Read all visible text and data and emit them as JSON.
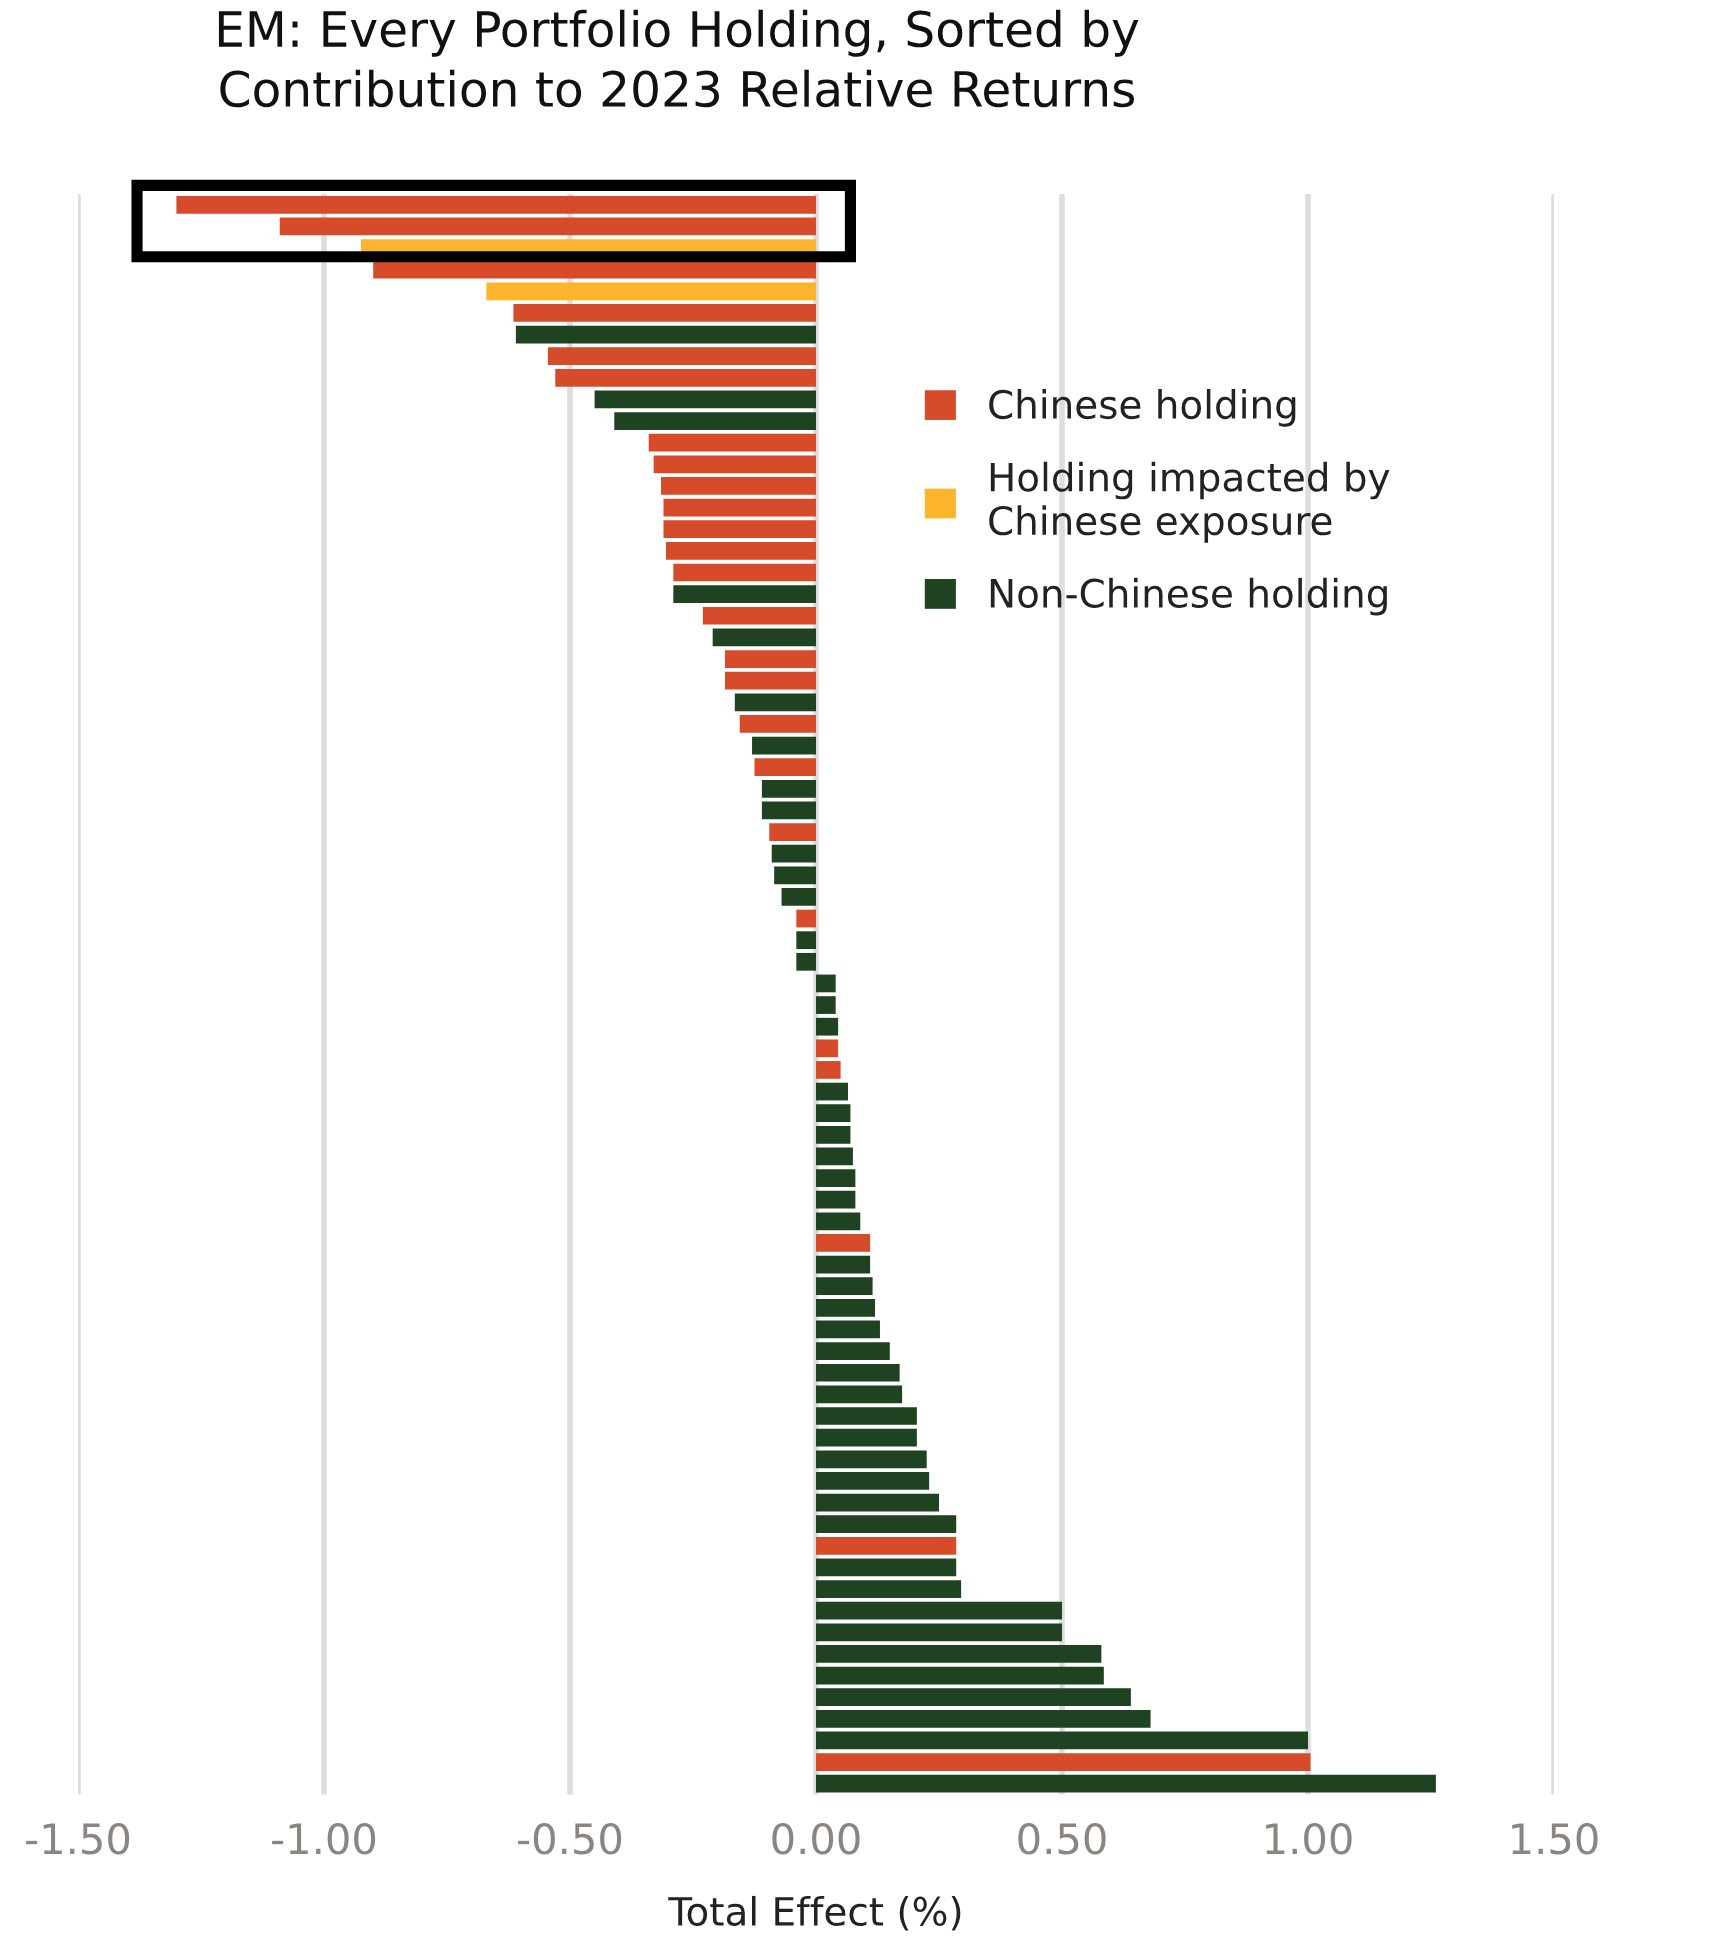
{
  "chart_data": {
    "type": "bar",
    "orientation": "horizontal",
    "title": "EM: Every Portfolio Holding, Sorted by\nContribution to 2023 Relative Returns",
    "xlabel": "Total Effect (%)",
    "categories": [
      null,
      null,
      null,
      null,
      null,
      null,
      null,
      null,
      null,
      null,
      null,
      null,
      null,
      null,
      null,
      null,
      null,
      null,
      null,
      null,
      null,
      null,
      null,
      null,
      null,
      null,
      null,
      null,
      null,
      null,
      null,
      null,
      null,
      null,
      null,
      null,
      null,
      null,
      null,
      null,
      null,
      null,
      null,
      null,
      null,
      null,
      null,
      null,
      null,
      null,
      null,
      null,
      null,
      null,
      null,
      null,
      null,
      null,
      null,
      null,
      null,
      null,
      null,
      null,
      null,
      null,
      null,
      null,
      null,
      null,
      null,
      null,
      null,
      null
    ],
    "series": [
      {
        "name": "Chinese holding",
        "color": "#d64b29",
        "values": [
          -1.3,
          -1.09,
          null,
          -0.9,
          null,
          -0.615,
          null,
          -0.545,
          -0.53,
          null,
          null,
          -0.34,
          -0.33,
          -0.315,
          -0.31,
          -0.31,
          -0.305,
          -0.29,
          null,
          -0.23,
          null,
          -0.185,
          -0.185,
          null,
          -0.155,
          null,
          -0.125,
          null,
          null,
          -0.095,
          null,
          null,
          null,
          -0.04,
          null,
          null,
          null,
          null,
          null,
          0.045,
          0.05,
          null,
          null,
          null,
          null,
          null,
          null,
          null,
          0.11,
          null,
          null,
          null,
          null,
          null,
          null,
          null,
          null,
          null,
          null,
          null,
          null,
          null,
          0.285,
          null,
          null,
          null,
          null,
          null,
          null,
          null,
          null,
          null,
          1.005,
          null
        ]
      },
      {
        "name": "Holding impacted by\nChinese exposure",
        "color": "#fdb42d",
        "values": [
          null,
          null,
          -0.925,
          null,
          -0.67,
          null,
          null,
          null,
          null,
          null,
          null,
          null,
          null,
          null,
          null,
          null,
          null,
          null,
          null,
          null,
          null,
          null,
          null,
          null,
          null,
          null,
          null,
          null,
          null,
          null,
          null,
          null,
          null,
          null,
          null,
          null,
          null,
          null,
          null,
          null,
          null,
          null,
          null,
          null,
          null,
          null,
          null,
          null,
          null,
          null,
          null,
          null,
          null,
          null,
          null,
          null,
          null,
          null,
          null,
          null,
          null,
          null,
          null,
          null,
          null,
          null,
          null,
          null,
          null,
          null,
          null,
          null,
          null,
          null
        ]
      },
      {
        "name": "Non-Chinese holding",
        "color": "#1f4220",
        "values": [
          null,
          null,
          null,
          null,
          null,
          null,
          -0.61,
          null,
          null,
          -0.45,
          -0.41,
          null,
          null,
          null,
          null,
          null,
          null,
          null,
          -0.29,
          null,
          -0.21,
          null,
          null,
          -0.165,
          null,
          -0.13,
          null,
          -0.11,
          -0.11,
          null,
          -0.09,
          -0.085,
          -0.07,
          null,
          -0.04,
          -0.04,
          0.04,
          0.04,
          0.045,
          null,
          null,
          0.065,
          0.07,
          0.07,
          0.075,
          0.08,
          0.08,
          0.09,
          null,
          0.11,
          0.115,
          0.12,
          0.13,
          0.15,
          0.17,
          0.175,
          0.205,
          0.205,
          0.225,
          0.23,
          0.25,
          0.285,
          null,
          0.285,
          0.295,
          0.5,
          0.5,
          0.58,
          0.585,
          0.64,
          0.68,
          1.0,
          null,
          1.26
        ]
      }
    ],
    "xlim": [
      -1.5,
      1.5
    ],
    "xticks": [
      {
        "value": -1.5,
        "label": "-1.50"
      },
      {
        "value": -1.0,
        "label": "-1.00"
      },
      {
        "value": -0.5,
        "label": "-0.50"
      },
      {
        "value": 0,
        "label": "0.00"
      },
      {
        "value": 0.5,
        "label": "0.50"
      },
      {
        "value": 1.0,
        "label": "1.00"
      },
      {
        "value": 1.5,
        "label": "1.50"
      }
    ],
    "grid": "x",
    "legend": "top right",
    "tick_labels": "x"
  }
}
